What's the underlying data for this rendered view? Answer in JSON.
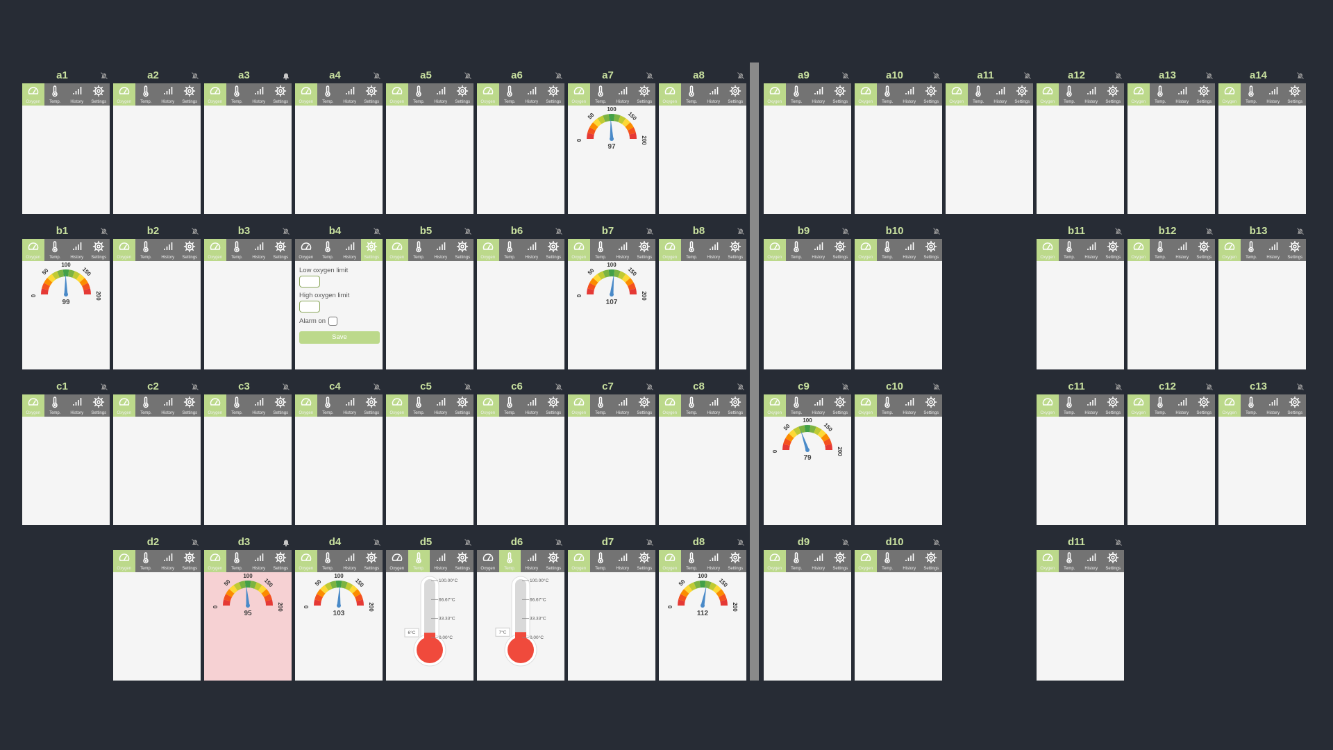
{
  "colors": {
    "background": "#272c35",
    "name": "#c8e09f",
    "tab_active": "#bcd98b",
    "tab_inactive": "#737373",
    "panel": "#f5f5f5",
    "alarm_panel": "#f6d1d3",
    "needle": "#4a8ac8",
    "thermo_fill": "#f04a3c"
  },
  "tab_labels": {
    "oxygen": "Oxygen",
    "temp": "Temp.",
    "history": "History",
    "settings": "Settings"
  },
  "tab_icons": {
    "oxygen": "gauge-icon",
    "temp": "thermometer-icon",
    "history": "bar-chart-icon",
    "settings": "gear-icon"
  },
  "gauge_scale": {
    "min": 0,
    "max": 200,
    "ticks": [
      "0",
      "50",
      "100",
      "150",
      "200"
    ]
  },
  "thermo_scale": {
    "ticks": [
      "100.00°C",
      "66.67°C",
      "33.33°C",
      "0.00°C"
    ],
    "max": 100
  },
  "settings_form": {
    "low_label": "Low oxygen limit",
    "high_label": "High oxygen limit",
    "alarm_label": "Alarm on",
    "save_label": "Save",
    "low_value": "",
    "high_value": "",
    "alarm_checked": false
  },
  "sensors": [
    {
      "id": "a1",
      "bell": "off",
      "tab": "oxygen"
    },
    {
      "id": "a2",
      "bell": "off",
      "tab": "oxygen"
    },
    {
      "id": "a3",
      "bell": "on",
      "tab": "oxygen"
    },
    {
      "id": "a4",
      "bell": "off",
      "tab": "oxygen"
    },
    {
      "id": "a5",
      "bell": "off",
      "tab": "oxygen"
    },
    {
      "id": "a6",
      "bell": "off",
      "tab": "oxygen"
    },
    {
      "id": "a7",
      "bell": "off",
      "tab": "oxygen",
      "value": 97
    },
    {
      "id": "a8",
      "bell": "off",
      "tab": "oxygen"
    },
    {
      "id": "a9",
      "bell": "off",
      "tab": "oxygen"
    },
    {
      "id": "a10",
      "bell": "off",
      "tab": "oxygen"
    },
    {
      "id": "a11",
      "bell": "off",
      "tab": "oxygen"
    },
    {
      "id": "a12",
      "bell": "off",
      "tab": "oxygen"
    },
    {
      "id": "a13",
      "bell": "off",
      "tab": "oxygen"
    },
    {
      "id": "a14",
      "bell": "off",
      "tab": "oxygen"
    },
    {
      "id": "b1",
      "bell": "off",
      "tab": "oxygen",
      "value": 99
    },
    {
      "id": "b2",
      "bell": "off",
      "tab": "oxygen"
    },
    {
      "id": "b3",
      "bell": "off",
      "tab": "oxygen"
    },
    {
      "id": "b4",
      "bell": "off",
      "tab": "settings"
    },
    {
      "id": "b5",
      "bell": "off",
      "tab": "oxygen"
    },
    {
      "id": "b6",
      "bell": "off",
      "tab": "oxygen"
    },
    {
      "id": "b7",
      "bell": "off",
      "tab": "oxygen",
      "value": 107
    },
    {
      "id": "b8",
      "bell": "off",
      "tab": "oxygen"
    },
    {
      "id": "b9",
      "bell": "off",
      "tab": "oxygen"
    },
    {
      "id": "b10",
      "bell": "off",
      "tab": "oxygen"
    },
    {
      "id": "b11",
      "bell": "off",
      "tab": "oxygen"
    },
    {
      "id": "b12",
      "bell": "off",
      "tab": "oxygen"
    },
    {
      "id": "b13",
      "bell": "off",
      "tab": "oxygen"
    },
    {
      "id": "c1",
      "bell": "off",
      "tab": "oxygen"
    },
    {
      "id": "c2",
      "bell": "off",
      "tab": "oxygen"
    },
    {
      "id": "c3",
      "bell": "off",
      "tab": "oxygen"
    },
    {
      "id": "c4",
      "bell": "off",
      "tab": "oxygen"
    },
    {
      "id": "c5",
      "bell": "off",
      "tab": "oxygen"
    },
    {
      "id": "c6",
      "bell": "off",
      "tab": "oxygen"
    },
    {
      "id": "c7",
      "bell": "off",
      "tab": "oxygen"
    },
    {
      "id": "c8",
      "bell": "off",
      "tab": "oxygen"
    },
    {
      "id": "c9",
      "bell": "off",
      "tab": "oxygen",
      "value": 79
    },
    {
      "id": "c10",
      "bell": "off",
      "tab": "oxygen"
    },
    {
      "id": "c11",
      "bell": "off",
      "tab": "oxygen"
    },
    {
      "id": "c12",
      "bell": "off",
      "tab": "oxygen"
    },
    {
      "id": "c13",
      "bell": "off",
      "tab": "oxygen"
    },
    {
      "id": "d2",
      "bell": "off",
      "tab": "oxygen"
    },
    {
      "id": "d3",
      "bell": "on",
      "tab": "oxygen",
      "value": 95,
      "alarm": true
    },
    {
      "id": "d4",
      "bell": "off",
      "tab": "oxygen",
      "value": 103
    },
    {
      "id": "d5",
      "bell": "off",
      "tab": "temp",
      "temp": "6°C",
      "temp_value": 6
    },
    {
      "id": "d6",
      "bell": "off",
      "tab": "temp",
      "temp": "7°C",
      "temp_value": 7
    },
    {
      "id": "d7",
      "bell": "off",
      "tab": "oxygen"
    },
    {
      "id": "d8",
      "bell": "off",
      "tab": "oxygen",
      "value": 112
    },
    {
      "id": "d9",
      "bell": "off",
      "tab": "oxygen"
    },
    {
      "id": "d10",
      "bell": "off",
      "tab": "oxygen"
    },
    {
      "id": "d11",
      "bell": "off",
      "tab": "oxygen"
    }
  ]
}
